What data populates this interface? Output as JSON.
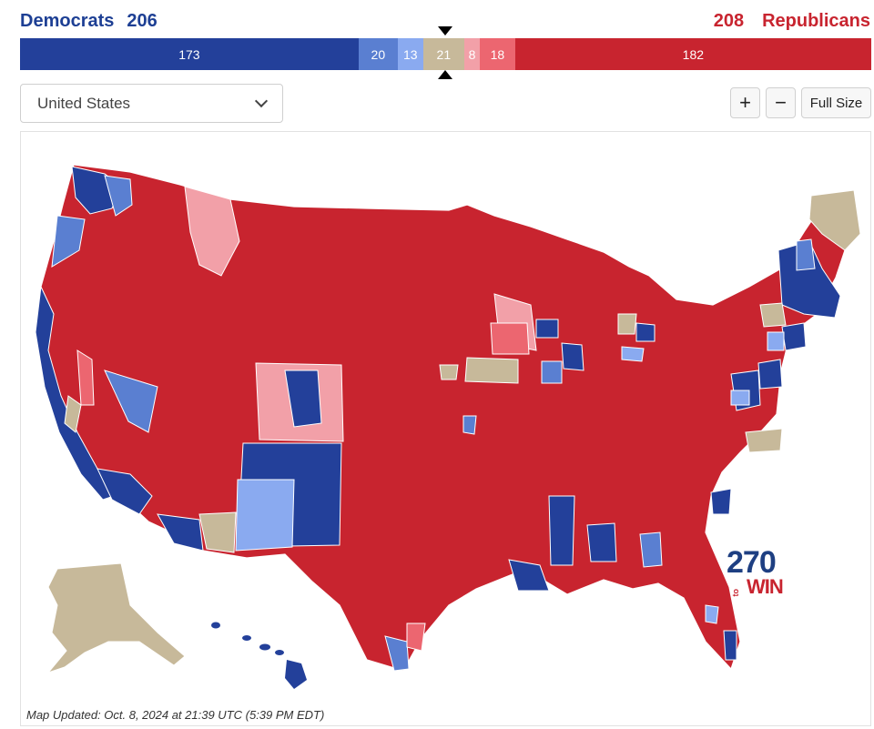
{
  "header": {
    "democrats_label": "Democrats",
    "democrats_total": "206",
    "republicans_total": "208",
    "republicans_label": "Republicans"
  },
  "seat_bar": [
    {
      "label": "173",
      "seats": 173,
      "category": "safe-dem",
      "color": "#23409a"
    },
    {
      "label": "20",
      "seats": 20,
      "category": "likely-dem",
      "color": "#5a7fd1"
    },
    {
      "label": "13",
      "seats": 13,
      "category": "lean-dem",
      "color": "#8aaaf0"
    },
    {
      "label": "21",
      "seats": 21,
      "category": "tossup",
      "color": "#c7b99a"
    },
    {
      "label": "8",
      "seats": 8,
      "category": "lean-rep",
      "color": "#f2a0a8"
    },
    {
      "label": "18",
      "seats": 18,
      "category": "likely-rep",
      "color": "#ec6670"
    },
    {
      "label": "182",
      "seats": 182,
      "category": "safe-rep",
      "color": "#c8242f"
    }
  ],
  "controls": {
    "region_selected": "United States",
    "zoom_in_label": "+",
    "zoom_out_label": "−",
    "full_size_label": "Full Size"
  },
  "map": {
    "updated_text": "Map Updated: Oct. 8, 2024 at 21:39 UTC (5:39 PM EDT)",
    "logo_number": "270",
    "logo_to": "to",
    "logo_win": "WIN",
    "colors": {
      "safe_dem": "#23409a",
      "likely_dem": "#5a7fd1",
      "lean_dem": "#8aaaf0",
      "tossup": "#c7b99a",
      "lean_rep": "#f2a0a8",
      "likely_rep": "#ec6670",
      "safe_rep": "#c8242f"
    }
  }
}
